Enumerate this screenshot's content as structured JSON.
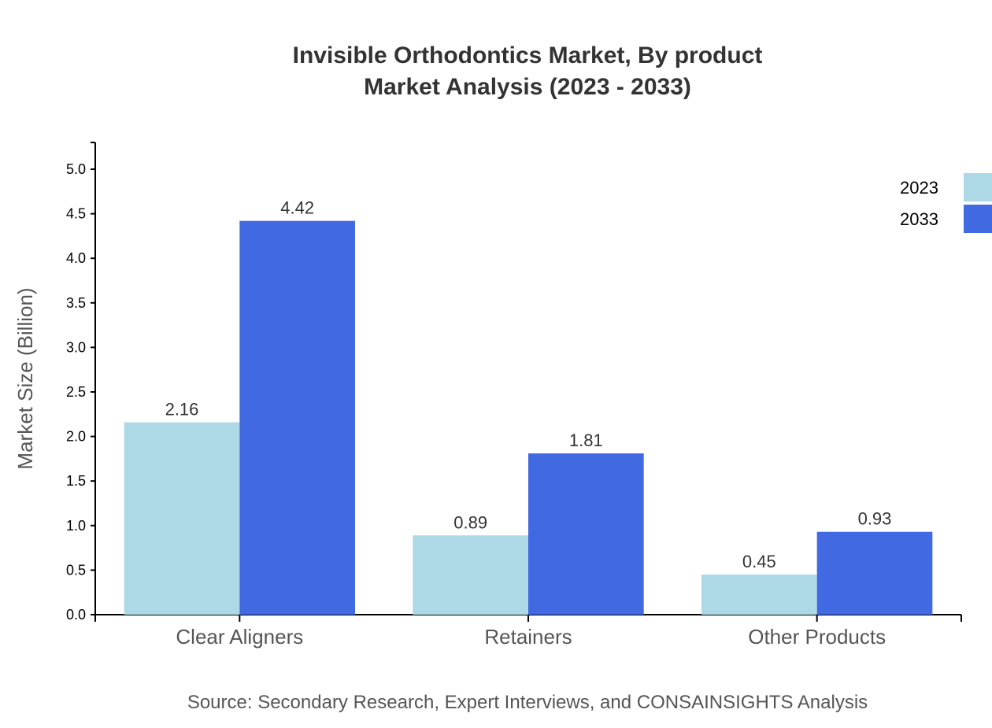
{
  "chart_data": {
    "type": "bar",
    "title": "Invisible Orthodontics Market, By product",
    "subtitle": "Market Analysis (2023 - 2033)",
    "xlabel": "",
    "ylabel": "Market Size (Billion)",
    "categories": [
      "Clear Aligners",
      "Retainers",
      "Other Products"
    ],
    "series": [
      {
        "name": "2023",
        "color": "#ADD8E6",
        "values": [
          2.16,
          0.89,
          0.45
        ],
        "labels": [
          "2.16",
          "0.89",
          "0.45"
        ]
      },
      {
        "name": "2033",
        "color": "#4169E1",
        "values": [
          4.42,
          1.81,
          0.93
        ],
        "labels": [
          "4.42",
          "1.81",
          "0.93"
        ]
      }
    ],
    "ylim": [
      0,
      5.3
    ],
    "yticks": [
      "0.0",
      "0.5",
      "1.0",
      "1.5",
      "2.0",
      "2.5",
      "3.0",
      "3.5",
      "4.0",
      "4.5",
      "5.0"
    ],
    "grid": false,
    "legend_position": "top-right",
    "source": "Source: Secondary Research, Expert Interviews, and CONSAINSIGHTS Analysis"
  }
}
